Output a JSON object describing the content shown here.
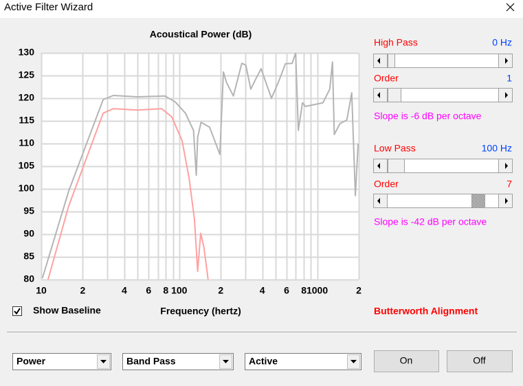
{
  "window": {
    "title": "Active Filter Wizard"
  },
  "chart_data": {
    "type": "line",
    "title": "Acoustical Power (dB)",
    "x_label": "Frequency (hertz)",
    "log_x": true,
    "grid": true,
    "xlim": [
      10,
      2000
    ],
    "ylim": [
      80,
      130
    ],
    "yticks": [
      80,
      85,
      90,
      95,
      100,
      105,
      110,
      115,
      120,
      125,
      130
    ],
    "xticks": [
      10,
      {
        "value": 20,
        "label": "2"
      },
      {
        "value": 40,
        "label": "4"
      },
      {
        "value": 60,
        "label": "6"
      },
      {
        "value": 80,
        "label": "8"
      },
      100,
      {
        "value": 200,
        "label": "2"
      },
      {
        "value": 400,
        "label": "4"
      },
      {
        "value": 600,
        "label": "6"
      },
      {
        "value": 800,
        "label": "8"
      },
      1000,
      {
        "value": 2000,
        "label": "2"
      }
    ],
    "xgrid": [
      10,
      20,
      30,
      40,
      50,
      60,
      70,
      80,
      90,
      100,
      200,
      300,
      400,
      500,
      600,
      700,
      800,
      900,
      1000,
      2000
    ],
    "series": [
      {
        "color": "#b4b4b4",
        "x": [
          10.2,
          15.8,
          28.1,
          33.3,
          49.8,
          78.7,
          93.5,
          111,
          127,
          133,
          136,
          144,
          166,
          197,
          209,
          220,
          247,
          284,
          304,
          330,
          358,
          392,
          466,
          523,
          588,
          658,
          698,
          730,
          782,
          822,
          921,
          1100,
          1232,
          1291,
          1330,
          1460,
          1640,
          1780,
          1890,
          1980
        ],
        "values": [
          80.3,
          99.5,
          119.7,
          120.6,
          120.3,
          120.5,
          119.2,
          116.7,
          112.9,
          103,
          111.4,
          114.7,
          113.6,
          107.6,
          125.8,
          123.5,
          120.5,
          127.7,
          127.3,
          122,
          124.2,
          126.5,
          120,
          123.5,
          127.6,
          127.7,
          130,
          112.9,
          119,
          118.2,
          118.5,
          119,
          122,
          128,
          112,
          114.4,
          115.2,
          121.2,
          98.5,
          110
        ]
      },
      {
        "color": "#ffa0a0",
        "x": [
          11.2,
          15.8,
          28.1,
          33.3,
          49.8,
          74.5,
          88.3,
          105,
          118,
          129,
          136,
          143,
          151,
          162
        ],
        "values": [
          80,
          96.2,
          116.7,
          117.7,
          117.4,
          117.7,
          115.9,
          110.6,
          102.3,
          93.2,
          81.8,
          90.2,
          87.1,
          80
        ]
      }
    ]
  },
  "controls": {
    "high_pass": {
      "label": "High Pass",
      "value": "0 Hz"
    },
    "high_pass_order": {
      "label": "Order",
      "value": "1"
    },
    "high_pass_slope": "Slope is -6 dB per octave",
    "low_pass": {
      "label": "Low Pass",
      "value": "100 Hz"
    },
    "low_pass_order": {
      "label": "Order",
      "value": "7"
    },
    "low_pass_slope": "Slope is -42 dB per octave",
    "baseline_checkbox": "Show Baseline",
    "alignment": "Butterworth Alignment",
    "dropdowns": [
      "Power",
      "Band Pass",
      "Active"
    ],
    "buttons": [
      "On",
      "Off"
    ]
  }
}
